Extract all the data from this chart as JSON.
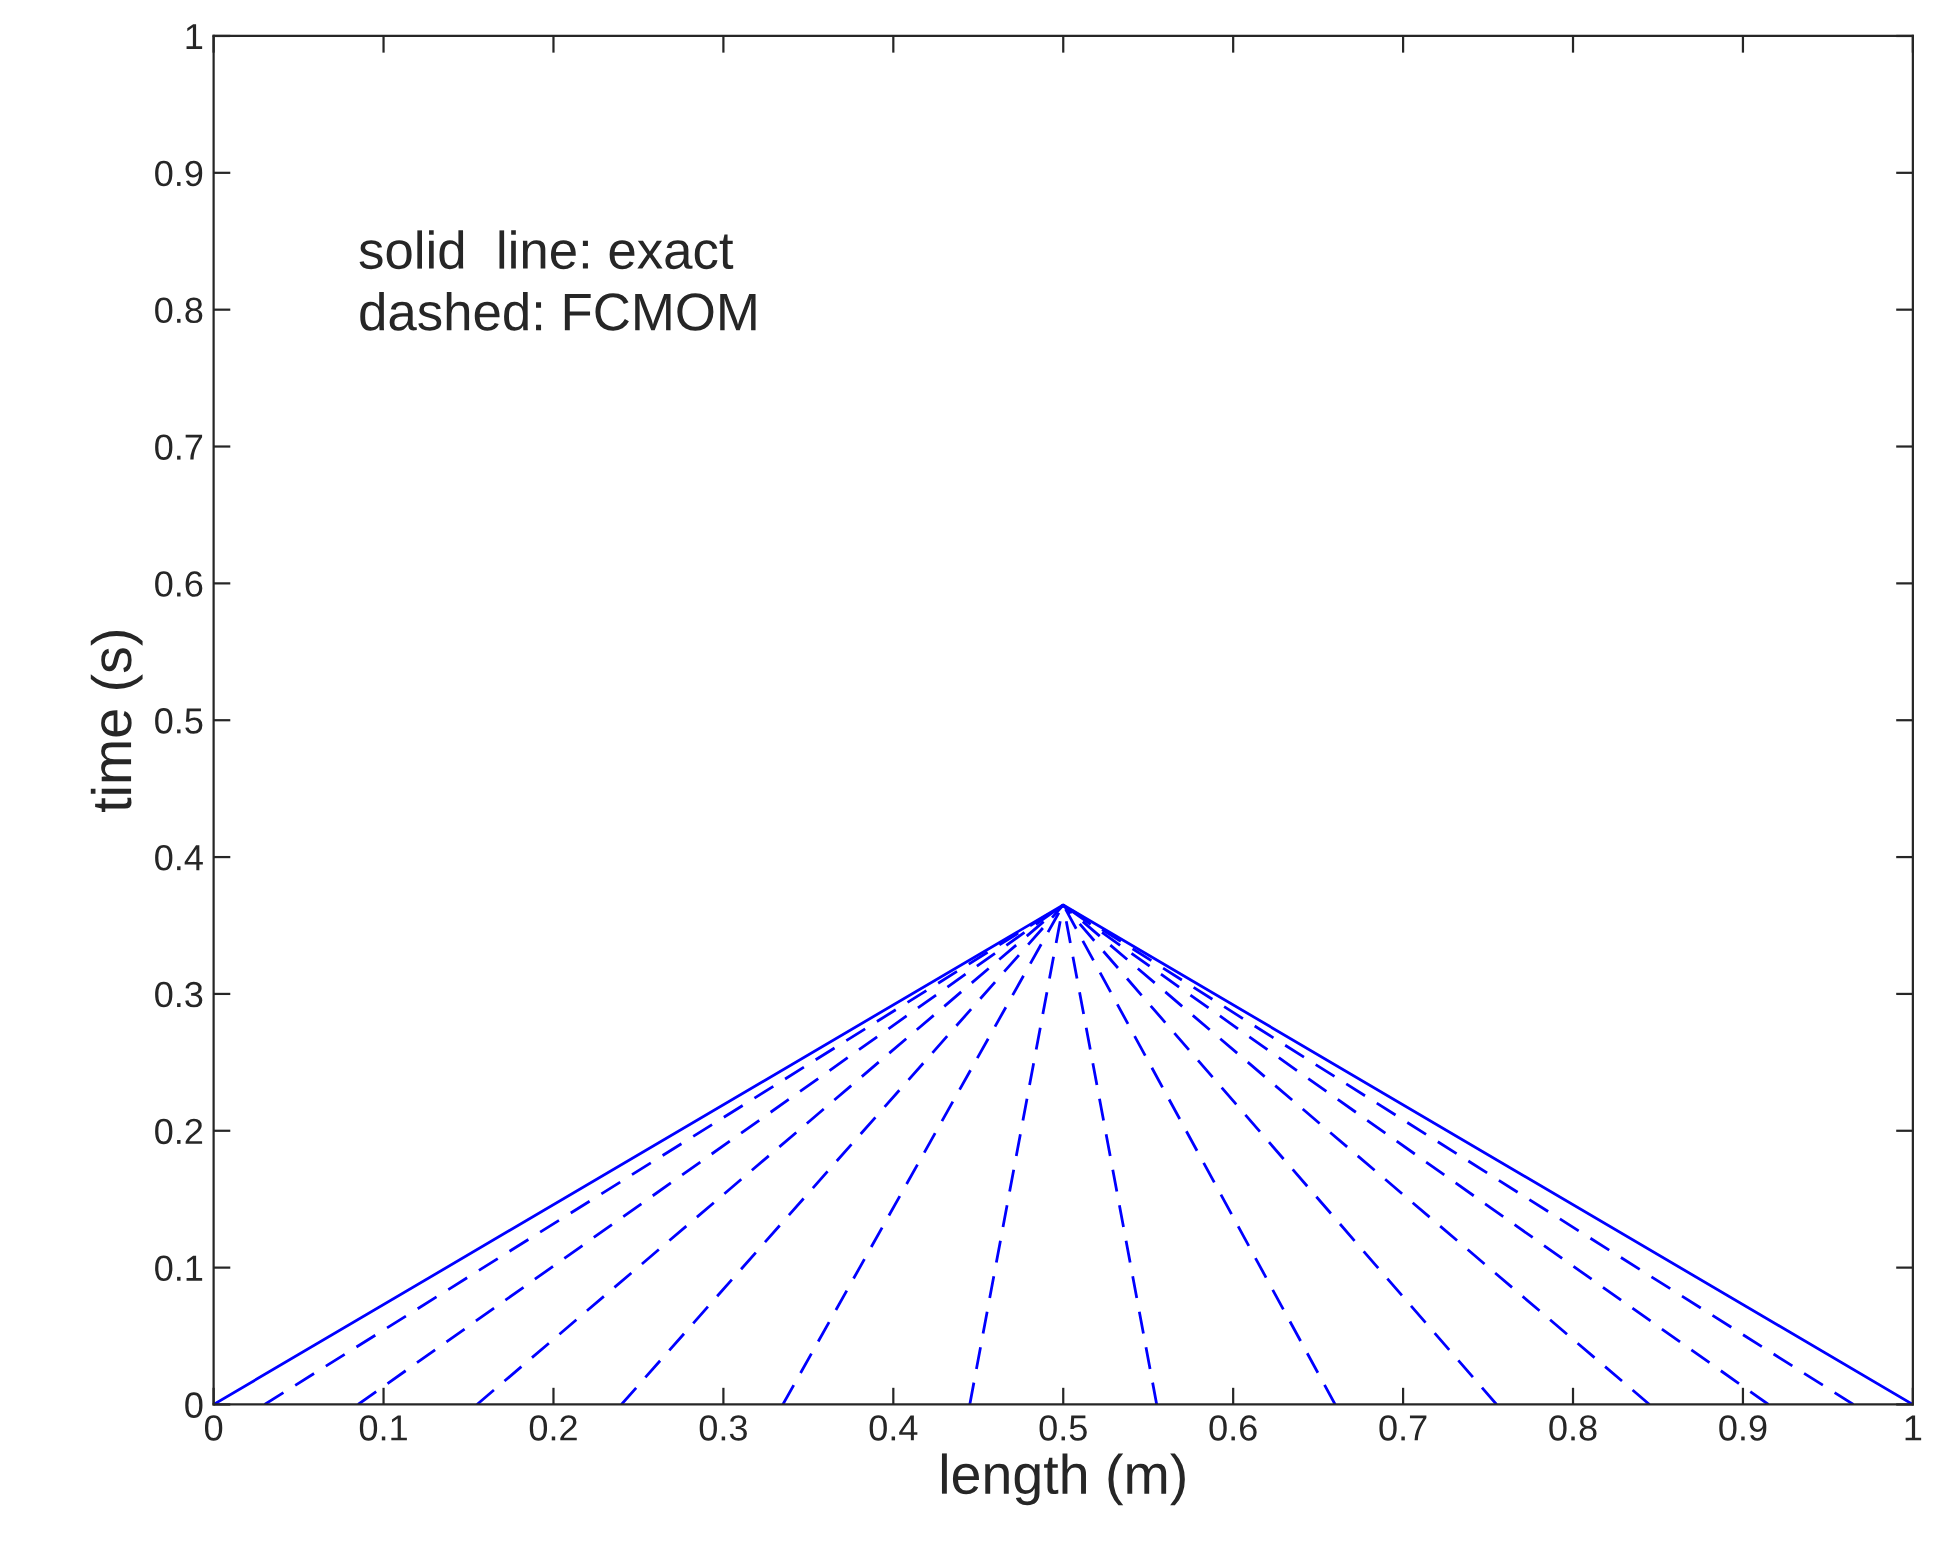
{
  "chart_data": {
    "type": "line",
    "xlabel": "length (m)",
    "ylabel": "time (s)",
    "annotations": [
      "solid  line: exact",
      "dashed: FCMOM"
    ],
    "xlim": [
      0,
      1
    ],
    "ylim": [
      0,
      1
    ],
    "xticks": [
      0,
      0.1,
      0.2,
      0.3,
      0.4,
      0.5,
      0.6,
      0.7,
      0.8,
      0.9,
      1
    ],
    "yticks": [
      0,
      0.1,
      0.2,
      0.3,
      0.4,
      0.5,
      0.6,
      0.7,
      0.8,
      0.9,
      1
    ],
    "grid": false,
    "series": [
      {
        "color": "#0000ff",
        "line_style": "solid",
        "x": [
          0,
          0.5,
          1
        ],
        "values": [
          0,
          0.365,
          0
        ]
      },
      {
        "color": "#0000ff",
        "line_style": "dashed",
        "x": [
          0.03,
          0.5
        ],
        "values": [
          0,
          0.365
        ]
      },
      {
        "color": "#0000ff",
        "line_style": "dashed",
        "x": [
          0.085,
          0.5
        ],
        "values": [
          0,
          0.365
        ]
      },
      {
        "color": "#0000ff",
        "line_style": "dashed",
        "x": [
          0.155,
          0.5
        ],
        "values": [
          0,
          0.365
        ]
      },
      {
        "color": "#0000ff",
        "line_style": "dashed",
        "x": [
          0.24,
          0.5
        ],
        "values": [
          0,
          0.365
        ]
      },
      {
        "color": "#0000ff",
        "line_style": "dashed",
        "x": [
          0.335,
          0.5
        ],
        "values": [
          0,
          0.365
        ]
      },
      {
        "color": "#0000ff",
        "line_style": "dashed",
        "x": [
          0.445,
          0.5
        ],
        "values": [
          0,
          0.365
        ]
      },
      {
        "color": "#0000ff",
        "line_style": "dashed",
        "x": [
          0.555,
          0.5
        ],
        "values": [
          0,
          0.365
        ]
      },
      {
        "color": "#0000ff",
        "line_style": "dashed",
        "x": [
          0.66,
          0.5
        ],
        "values": [
          0,
          0.365
        ]
      },
      {
        "color": "#0000ff",
        "line_style": "dashed",
        "x": [
          0.755,
          0.5
        ],
        "values": [
          0,
          0.365
        ]
      },
      {
        "color": "#0000ff",
        "line_style": "dashed",
        "x": [
          0.845,
          0.5
        ],
        "values": [
          0,
          0.365
        ]
      },
      {
        "color": "#0000ff",
        "line_style": "dashed",
        "x": [
          0.915,
          0.5
        ],
        "values": [
          0,
          0.365
        ]
      },
      {
        "color": "#0000ff",
        "line_style": "dashed",
        "x": [
          0.965,
          0.5
        ],
        "values": [
          0,
          0.365
        ]
      }
    ]
  }
}
